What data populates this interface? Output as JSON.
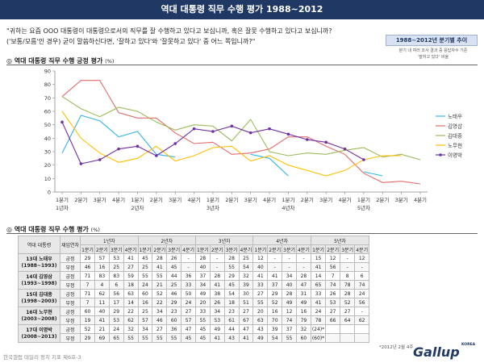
{
  "title": "역대 대통령 직무 수행 평가 1988~2012",
  "question": {
    "line1": "\"귀하는 요즘 OOO 대통령이 대통령으로서의 직무를 잘 수행하고 있다고 보십니까, 혹은 잘못 수행하고 있다고 보십니까?",
    "line2": "('보통/모름'인 경우) 굳이 말씀하신다면, '잘하고 있다'와 '잘못하고 있다' 중 어느 쪽입니까?\""
  },
  "trend_badge": "1988~2012년 분기별 추이",
  "trend_note_line1": "분기 내 여러 조사 결과 중 응답자수 기준",
  "trend_note_line2": "'잘하고 있다' 비율",
  "section_chart": "◎ 역대 대통령 직무 수행 긍정 평가",
  "section_table": "◎ 역대 대통령 직무 수행 평가",
  "unit": "(%)",
  "chart_data": {
    "type": "line",
    "title": "역대 대통령 직무 수행 긍정 평가",
    "ylabel": "",
    "xlabel": "",
    "ylim": [
      0,
      90
    ],
    "yticks": [
      0,
      10,
      20,
      30,
      40,
      50,
      60,
      70,
      80,
      90
    ],
    "grid": false,
    "legend_position": "right",
    "categories": [
      "1분기",
      "2분기",
      "3분기",
      "4분기",
      "1분기",
      "2분기",
      "3분기",
      "4분기",
      "1분기",
      "2분기",
      "3분기",
      "4분기",
      "1분기",
      "2분기",
      "3분기",
      "4분기",
      "1분기",
      "2분기",
      "3분기",
      "4분기"
    ],
    "year_labels": [
      {
        "index": 0,
        "label": "1년차"
      },
      {
        "index": 4,
        "label": "2년차"
      },
      {
        "index": 8,
        "label": "3년차"
      },
      {
        "index": 12,
        "label": "4년차"
      },
      {
        "index": 16,
        "label": "5년차"
      }
    ],
    "series": [
      {
        "name": "노태우",
        "color": "#33b5e5",
        "values": [
          29,
          57,
          53,
          41,
          45,
          28,
          26,
          null,
          28,
          null,
          28,
          25,
          12,
          null,
          null,
          null,
          15,
          12,
          null,
          12
        ]
      },
      {
        "name": "김영삼",
        "color": "#e46c6c",
        "values": [
          71,
          83,
          83,
          59,
          55,
          55,
          44,
          36,
          37,
          28,
          29,
          32,
          41,
          41,
          34,
          28,
          14,
          7,
          8,
          6
        ]
      },
      {
        "name": "김대중",
        "color": "#9bbb59",
        "values": [
          71,
          62,
          56,
          63,
          60,
          52,
          46,
          50,
          49,
          38,
          54,
          30,
          27,
          29,
          28,
          31,
          33,
          26,
          28,
          24
        ]
      },
      {
        "name": "노무현",
        "color": "#ffc000",
        "values": [
          60,
          40,
          29,
          22,
          25,
          34,
          23,
          27,
          33,
          34,
          23,
          27,
          20,
          16,
          12,
          16,
          24,
          27,
          27,
          null
        ]
      },
      {
        "name": "이명박",
        "color": "#7030a0",
        "values": [
          52,
          21,
          24,
          32,
          34,
          27,
          36,
          47,
          45,
          49,
          44,
          47,
          43,
          39,
          37,
          32,
          24,
          null,
          null,
          null
        ]
      }
    ]
  },
  "table": {
    "col_president": "역대 대통령",
    "col_year_header": "재임연차",
    "years": [
      "1년차",
      "2년차",
      "3년차",
      "4년차",
      "5년차"
    ],
    "quarters": [
      "1분기",
      "2분기",
      "3분기",
      "4분기"
    ],
    "rows": [
      {
        "name_line1": "13대 노태우",
        "name_line2": "(1988~1993)",
        "pos_label": "긍정",
        "neg_label": "부정",
        "pos": [
          "29",
          "57",
          "53",
          "41",
          "45",
          "28",
          "26",
          "-",
          "28",
          "-",
          "28",
          "25",
          "12",
          "-",
          "-",
          "-",
          "15",
          "12",
          "-",
          "12"
        ],
        "neg": [
          "46",
          "16",
          "25",
          "27",
          "25",
          "41",
          "45",
          "-",
          "40",
          "-",
          "55",
          "54",
          "40",
          "-",
          "-",
          "-",
          "41",
          "56",
          "-",
          "-"
        ]
      },
      {
        "name_line1": "14대 김영삼",
        "name_line2": "(1993~1998)",
        "pos_label": "긍정",
        "neg_label": "부정",
        "pos": [
          "71",
          "83",
          "83",
          "59",
          "55",
          "55",
          "44",
          "36",
          "37",
          "28",
          "29",
          "32",
          "41",
          "41",
          "34",
          "28",
          "14",
          "7",
          "8",
          "6"
        ],
        "neg": [
          "7",
          "4",
          "6",
          "18",
          "24",
          "21",
          "25",
          "33",
          "34",
          "41",
          "45",
          "39",
          "33",
          "37",
          "40",
          "47",
          "65",
          "74",
          "78",
          "74"
        ]
      },
      {
        "name_line1": "15대 김대중",
        "name_line2": "(1998~2003)",
        "pos_label": "긍정",
        "neg_label": "부정",
        "pos": [
          "71",
          "62",
          "56",
          "63",
          "60",
          "52",
          "46",
          "50",
          "49",
          "38",
          "54",
          "30",
          "27",
          "29",
          "28",
          "31",
          "33",
          "26",
          "28",
          "24"
        ],
        "neg": [
          "7",
          "11",
          "17",
          "14",
          "16",
          "22",
          "29",
          "24",
          "20",
          "26",
          "18",
          "51",
          "55",
          "52",
          "49",
          "49",
          "41",
          "53",
          "52",
          "56"
        ]
      },
      {
        "name_line1": "16대 노무현",
        "name_line2": "(2003~2008)",
        "pos_label": "긍정",
        "neg_label": "부정",
        "pos": [
          "60",
          "40",
          "29",
          "22",
          "25",
          "34",
          "23",
          "27",
          "33",
          "34",
          "23",
          "27",
          "20",
          "16",
          "12",
          "16",
          "24",
          "27",
          "27",
          "-"
        ],
        "neg": [
          "19",
          "41",
          "53",
          "62",
          "57",
          "46",
          "60",
          "57",
          "55",
          "53",
          "61",
          "67",
          "63",
          "70",
          "74",
          "79",
          "78",
          "66",
          "64",
          "62"
        ]
      },
      {
        "name_line1": "17대 이명박",
        "name_line2": "(2008~2013)",
        "pos_label": "긍정",
        "neg_label": "부정",
        "pos": [
          "52",
          "21",
          "24",
          "32",
          "34",
          "27",
          "36",
          "47",
          "45",
          "49",
          "44",
          "47",
          "43",
          "39",
          "37",
          "32",
          "(24)*",
          "",
          "",
          ""
        ],
        "neg": [
          "29",
          "69",
          "65",
          "55",
          "55",
          "55",
          "55",
          "45",
          "45",
          "41",
          "43",
          "41",
          "49",
          "54",
          "55",
          "60",
          "(60)*",
          "",
          "",
          ""
        ]
      }
    ]
  },
  "footnote": "*2012년 2월 4주",
  "source": "한국갤럽 데일리 정치 지표 제6호-3",
  "logo_name": "Gallup",
  "logo_korea": "KOREA"
}
